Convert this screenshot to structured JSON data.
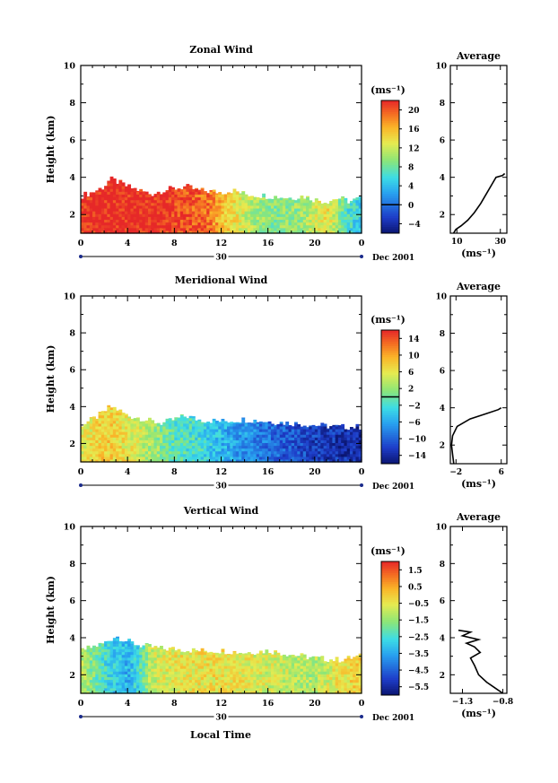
{
  "figure": {
    "y_label": "Height (km)",
    "x_label": "Local Time",
    "date_label": "Dec 2001",
    "day_label": "30",
    "x_ticks": [
      "0",
      "4",
      "8",
      "12",
      "16",
      "20",
      "0"
    ],
    "y_ticks": [
      "10",
      "8",
      "6",
      "4",
      "2"
    ],
    "colorbar_unit": "(ms⁻¹)",
    "avg_unit": "(ms⁻¹)",
    "avg_title": "Average"
  },
  "chart_data": [
    {
      "type": "heatmap",
      "title": "Zonal Wind",
      "xlabel": "Local Time",
      "ylabel": "Height (km)",
      "xlim": [
        0,
        24
      ],
      "ylim": [
        1,
        10
      ],
      "colorbar_ticks": [
        20,
        16,
        12,
        8,
        4,
        0,
        -4
      ],
      "colorbar_tick_labels": [
        "20",
        "16",
        "12",
        "8",
        "4",
        "0",
        "−4"
      ],
      "colorbar_range": [
        -6,
        22
      ],
      "zero_contour": 0,
      "top_height_km": [
        [
          0,
          3.0
        ],
        [
          1,
          3.2
        ],
        [
          2,
          3.5
        ],
        [
          2.5,
          3.9
        ],
        [
          3,
          3.8
        ],
        [
          4,
          3.5
        ],
        [
          5,
          3.3
        ],
        [
          6,
          3.1
        ],
        [
          7,
          3.3
        ],
        [
          8,
          3.4
        ],
        [
          9,
          3.5
        ],
        [
          10,
          3.3
        ],
        [
          12,
          3.2
        ],
        [
          13,
          3.3
        ],
        [
          14,
          3.1
        ],
        [
          16,
          3.0
        ],
        [
          18,
          2.9
        ],
        [
          19,
          3.0
        ],
        [
          20,
          2.8
        ],
        [
          21,
          2.7
        ],
        [
          22,
          2.9
        ],
        [
          23,
          2.7
        ],
        [
          24,
          2.9
        ]
      ],
      "value_regime": [
        [
          0,
          22
        ],
        [
          6,
          22
        ],
        [
          8,
          21
        ],
        [
          11,
          19
        ],
        [
          12,
          16
        ],
        [
          14,
          12
        ],
        [
          16,
          9
        ],
        [
          19,
          10
        ],
        [
          21,
          14
        ],
        [
          23,
          6
        ],
        [
          24,
          5
        ]
      ],
      "average_profile": {
        "x_ticks": [
          "10",
          "30"
        ],
        "xlim": [
          7,
          33
        ],
        "y_ticks": [
          "8",
          "6",
          "4",
          "2"
        ],
        "points": [
          [
            8.5,
            1.0
          ],
          [
            9.5,
            1.2
          ],
          [
            12,
            1.4
          ],
          [
            15,
            1.7
          ],
          [
            18,
            2.1
          ],
          [
            21,
            2.6
          ],
          [
            24,
            3.2
          ],
          [
            26.5,
            3.7
          ],
          [
            28,
            4.0
          ],
          [
            31,
            4.1
          ],
          [
            32,
            4.2
          ]
        ]
      }
    },
    {
      "type": "heatmap",
      "title": "Meridional Wind",
      "xlabel": "Local Time",
      "ylabel": "Height (km)",
      "xlim": [
        0,
        24
      ],
      "ylim": [
        1,
        10
      ],
      "colorbar_ticks": [
        14,
        10,
        6,
        2,
        -2,
        -6,
        -10,
        -14
      ],
      "colorbar_tick_labels": [
        "14",
        "10",
        "6",
        "2",
        "−2",
        "−6",
        "−10",
        "−14"
      ],
      "colorbar_range": [
        -16,
        16
      ],
      "zero_contour": 0,
      "top_height_km": [
        [
          0,
          3.0
        ],
        [
          1,
          3.3
        ],
        [
          2,
          3.7
        ],
        [
          2.5,
          4.0
        ],
        [
          3,
          3.9
        ],
        [
          4,
          3.5
        ],
        [
          5,
          3.4
        ],
        [
          6,
          3.2
        ],
        [
          7,
          3.1
        ],
        [
          8,
          3.3
        ],
        [
          9,
          3.5
        ],
        [
          10,
          3.3
        ],
        [
          12,
          3.2
        ],
        [
          14,
          3.3
        ],
        [
          16,
          3.2
        ],
        [
          18,
          3.1
        ],
        [
          20,
          3.0
        ],
        [
          22,
          2.9
        ],
        [
          24,
          2.9
        ]
      ],
      "value_regime": [
        [
          0,
          5
        ],
        [
          2,
          8
        ],
        [
          4,
          6
        ],
        [
          6,
          3
        ],
        [
          8,
          -1
        ],
        [
          10,
          -2
        ],
        [
          12,
          -5
        ],
        [
          14,
          -7
        ],
        [
          16,
          -9
        ],
        [
          18,
          -11
        ],
        [
          20,
          -12
        ],
        [
          22,
          -13
        ],
        [
          24,
          -14
        ]
      ],
      "average_profile": {
        "x_ticks": [
          "−2",
          "6"
        ],
        "xlim": [
          -3,
          7
        ],
        "y_ticks": [
          "8",
          "6",
          "4",
          "2"
        ],
        "points": [
          [
            -2.4,
            1.0
          ],
          [
            -2.6,
            1.5
          ],
          [
            -2.8,
            2.0
          ],
          [
            -2.6,
            2.5
          ],
          [
            -1.8,
            3.0
          ],
          [
            0.5,
            3.4
          ],
          [
            3.5,
            3.7
          ],
          [
            5.5,
            3.9
          ],
          [
            6,
            4.0
          ]
        ]
      }
    },
    {
      "type": "heatmap",
      "title": "Vertical Wind",
      "xlabel": "Local Time",
      "ylabel": "Height (km)",
      "xlim": [
        0,
        24
      ],
      "ylim": [
        1,
        10
      ],
      "colorbar_ticks": [
        1.5,
        0.5,
        -0.5,
        -1.5,
        -2.5,
        -3.5,
        -4.5,
        -5.5
      ],
      "colorbar_tick_labels": [
        "1.5",
        "0.5",
        "−0.5",
        "−1.5",
        "−2.5",
        "−3.5",
        "−4.5",
        "−5.5"
      ],
      "colorbar_range": [
        -6,
        2
      ],
      "zero_contour": null,
      "top_height_km": [
        [
          0,
          3.3
        ],
        [
          1,
          3.5
        ],
        [
          2,
          3.7
        ],
        [
          3,
          4.1
        ],
        [
          4,
          3.8
        ],
        [
          5,
          3.6
        ],
        [
          6,
          3.5
        ],
        [
          7,
          3.4
        ],
        [
          8,
          3.4
        ],
        [
          10,
          3.3
        ],
        [
          12,
          3.3
        ],
        [
          14,
          3.2
        ],
        [
          16,
          3.3
        ],
        [
          18,
          3.1
        ],
        [
          20,
          2.9
        ],
        [
          22,
          2.8
        ],
        [
          24,
          3.0
        ]
      ],
      "value_regime": [
        [
          0,
          -1.0
        ],
        [
          2,
          -2.5
        ],
        [
          3,
          -3.0
        ],
        [
          4,
          -3.3
        ],
        [
          5,
          -2.5
        ],
        [
          6,
          -1.0
        ],
        [
          8,
          -0.5
        ],
        [
          12,
          -0.3
        ],
        [
          16,
          -0.8
        ],
        [
          20,
          -1.2
        ],
        [
          22,
          -0.5
        ],
        [
          24,
          0.0
        ]
      ],
      "average_profile": {
        "x_ticks": [
          "−1.3",
          "−0.8"
        ],
        "xlim": [
          -1.45,
          -0.75
        ],
        "y_ticks": [
          "10",
          "8",
          "6",
          "4",
          "2"
        ],
        "points": [
          [
            -0.8,
            1.0
          ],
          [
            -0.9,
            1.3
          ],
          [
            -1.0,
            1.6
          ],
          [
            -1.1,
            2.0
          ],
          [
            -1.15,
            2.5
          ],
          [
            -1.2,
            2.9
          ],
          [
            -1.08,
            3.2
          ],
          [
            -1.15,
            3.5
          ],
          [
            -1.25,
            3.7
          ],
          [
            -1.1,
            3.9
          ],
          [
            -1.3,
            4.1
          ],
          [
            -1.2,
            4.3
          ],
          [
            -1.35,
            4.4
          ]
        ]
      }
    }
  ]
}
